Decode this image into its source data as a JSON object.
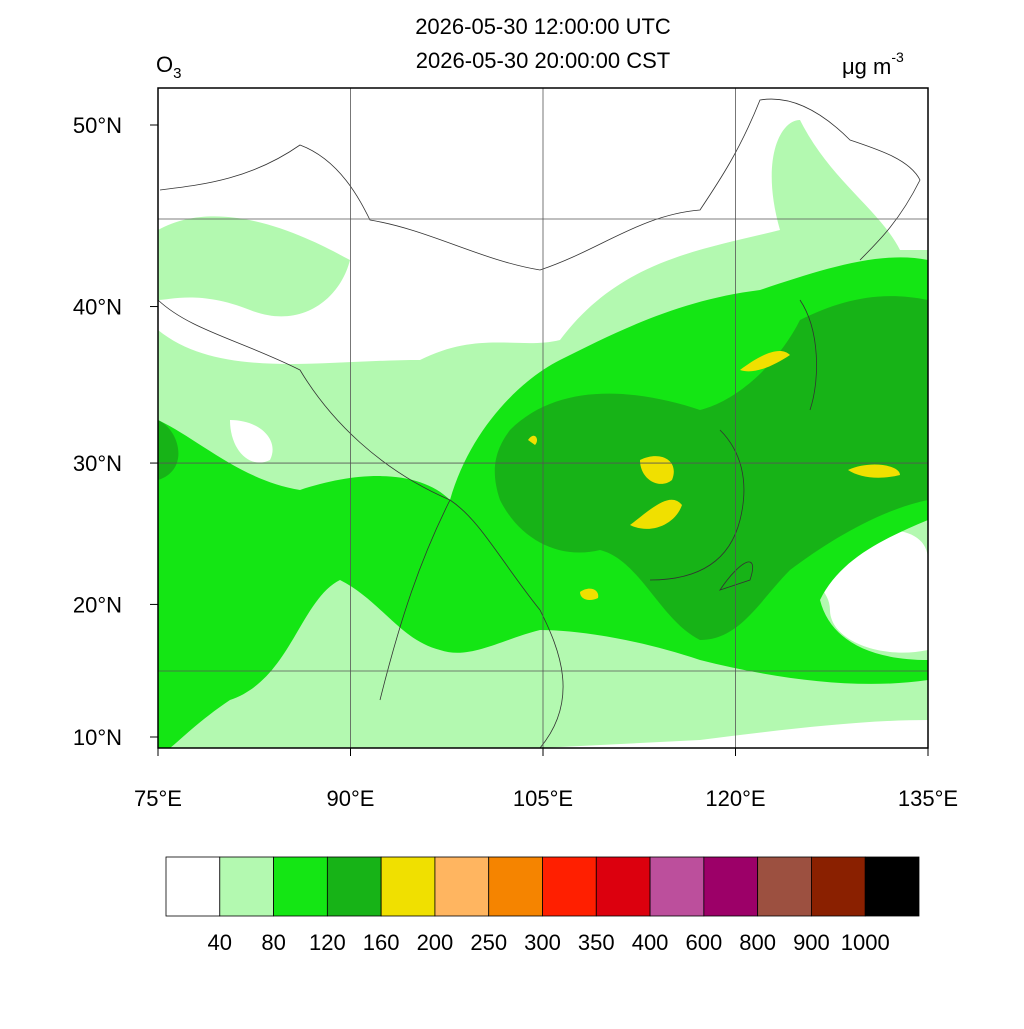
{
  "title_lines": [
    "2026-05-30 12:00:00 UTC",
    "2026-05-30 20:00:00 CST"
  ],
  "variable": {
    "text": "O",
    "sub": "3"
  },
  "units": {
    "text": "μg m",
    "sup": "-3"
  },
  "lon_ticks": [
    {
      "value": 75,
      "label": "75°E"
    },
    {
      "value": 90,
      "label": "90°E"
    },
    {
      "value": 105,
      "label": "105°E"
    },
    {
      "value": 120,
      "label": "120°E"
    },
    {
      "value": 135,
      "label": "135°E"
    }
  ],
  "lat_ticks": [
    {
      "value": 10,
      "label": "10°N"
    },
    {
      "value": 20,
      "label": "20°N"
    },
    {
      "value": 30,
      "label": "30°N"
    },
    {
      "value": 40,
      "label": "40°N"
    },
    {
      "value": 50,
      "label": "50°N"
    }
  ],
  "colorbar": {
    "colors": [
      "#ffffff",
      "#b3f9b0",
      "#14e614",
      "#17b317",
      "#f0e000",
      "#ffb560",
      "#f58400",
      "#ff1f00",
      "#dc000e",
      "#bc4f9c",
      "#9c0068",
      "#9c5040",
      "#8a2000",
      "#000000"
    ],
    "labels": [
      40,
      80,
      120,
      160,
      200,
      250,
      300,
      350,
      400,
      600,
      800,
      900,
      1000
    ]
  }
}
